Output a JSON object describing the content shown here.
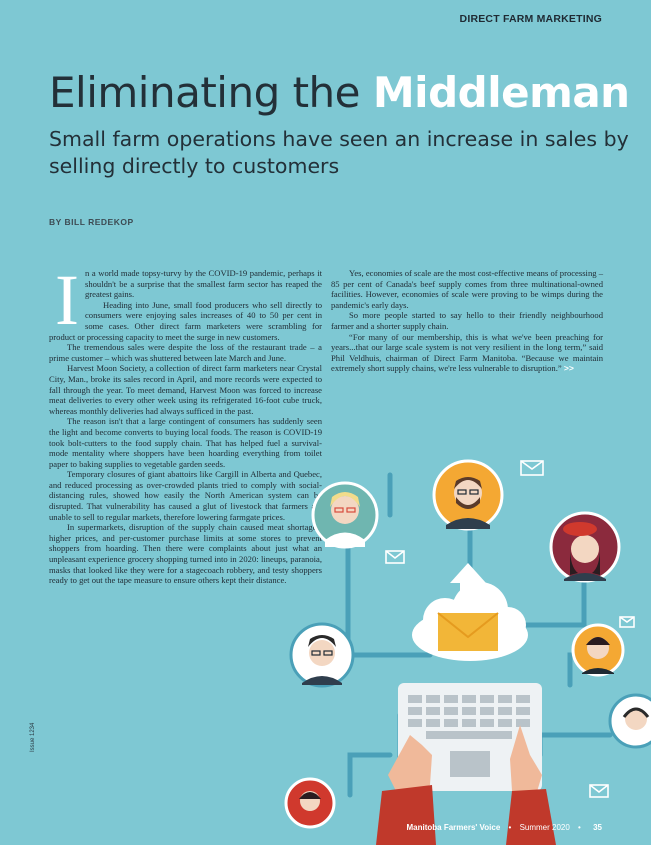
{
  "section": "DIRECT FARM MARKETING",
  "title": {
    "main": "Eliminating the",
    "highlight": "Middleman"
  },
  "subtitle": "Small farm operations have seen an increase in sales by selling directly to customers",
  "byline": "BY BILL REDEKOP",
  "dropcap": "I",
  "left_column": [
    "n a world made topsy-turvy by the COVID-19 pandemic, perhaps it shouldn't be a surprise that the smallest farm sector has reaped the greatest gains.",
    "Heading into June, small food producers who sell directly to consumers were enjoying sales increases of 40 to 50 per cent in some cases. Other direct farm marketers were scrambling for product or processing capacity to meet the surge in new customers.",
    "The tremendous sales were despite the loss of the restaurant trade – a prime customer – which was shuttered between late March and June.",
    "Harvest Moon Society, a collection of direct farm marketers near Crystal City, Man., broke its sales record in April, and more records were expected to fall through the year. To meet demand, Harvest Moon was forced to increase meat deliveries to every other week using its refrigerated 16-foot cube truck, whereas monthly deliveries had always sufficed in the past.",
    "The reason isn't that a large contingent of consumers has suddenly seen the light and become converts to buying local foods. The reason is COVID-19 took bolt-cutters to the food supply chain. That has helped fuel a survival-mode mentality where shoppers have been hoarding everything from toilet paper to baking supplies to vegetable garden seeds.",
    "Temporary closures of giant abattoirs like Cargill in Alberta and Quebec, and reduced processing as over-crowded plants tried to comply with social-distancing rules, showed how easily the North American system can be disrupted. That vulnerability has caused a glut of livestock that farmers are unable to sell to regular markets, therefore lowering farmgate prices.",
    "In supermarkets, disruption of the supply chain caused meat shortages, higher prices, and per-customer purchase limits at some stores to prevent shoppers from hoarding. Then there were complaints about just what an unpleasant experience grocery shopping turned into in 2020: lineups, paranoia, masks that looked like they were for a stagecoach robbery, and testy shoppers ready to get out the tape measure to ensure others kept their distance."
  ],
  "right_column": [
    "Yes, economies of scale are the most cost-effective means of processing – 85 per cent of Canada's beef supply comes from three multinational-owned facilities. However, economies of scale were proving to be wimps during the pandemic's early days.",
    "So more people started to say hello to their friendly neighbourhood farmer and a shorter supply chain.",
    "“For many of our membership, this is what we've been preaching for years...that our large scale system is not very resilient in the long term,” said Phil Veldhuis, chairman of Direct Farm Manitoba. “Because we maintain extremely short supply chains, we're less vulnerable to disruption.”"
  ],
  "continue_marker": ">>",
  "footer": {
    "publication": "Manitoba Farmers' Voice",
    "sep": "•",
    "issue": "Summer 2020",
    "page": "35"
  },
  "side_note": "Issue 1234",
  "illustration": {
    "name": "network of customers connected to laptop, cloud and email icons",
    "colors": {
      "bg": "#7ec8d3",
      "line": "#4aa0b8",
      "cloud": "#ffffff",
      "envelope": "#f2b638",
      "laptop": "#eef2f4",
      "sleeve": "#c0392b"
    }
  }
}
